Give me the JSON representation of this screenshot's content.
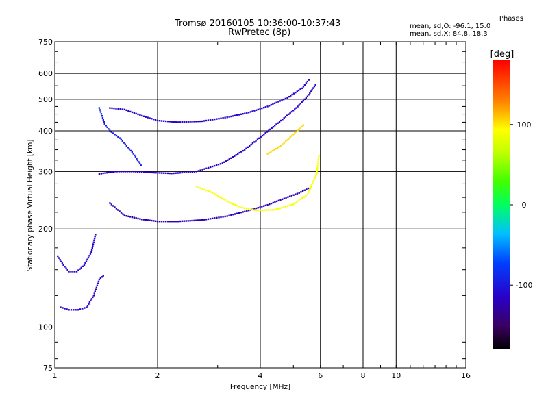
{
  "chart_data": {
    "type": "scatter",
    "title": "Tromsø 20160105 10:36:00-10:37:43",
    "subtitle": "RwPretec (8p)",
    "xlabel": "Frequency [MHz]",
    "ylabel": "Stationary phase Virtual Height [km]",
    "x_scale": "log",
    "y_scale": "log",
    "xlim": [
      1,
      16
    ],
    "ylim": [
      75,
      750
    ],
    "x_ticks": [
      1,
      2,
      4,
      6,
      8,
      10,
      16
    ],
    "y_ticks": [
      75,
      100,
      200,
      300,
      400,
      500,
      600,
      750
    ],
    "grid": true,
    "colorbar": {
      "label": "[deg]",
      "range": [
        -180,
        180
      ],
      "ticks": [
        100,
        0,
        -100
      ]
    },
    "phase_stats": {
      "heading": "Phases",
      "line_o": "mean, sd,O: -96.1, 15.0",
      "line_x": "mean, sd,X:  84.8, 18.3"
    },
    "traces": [
      {
        "phase": -110,
        "points": [
          [
            1.45,
            470
          ],
          [
            1.6,
            465
          ],
          [
            1.8,
            445
          ],
          [
            2.0,
            430
          ],
          [
            2.3,
            425
          ],
          [
            2.7,
            428
          ],
          [
            3.2,
            440
          ],
          [
            3.7,
            455
          ],
          [
            4.2,
            475
          ],
          [
            4.8,
            505
          ],
          [
            5.3,
            540
          ],
          [
            5.6,
            580
          ]
        ]
      },
      {
        "phase": -115,
        "points": [
          [
            1.35,
            295
          ],
          [
            1.5,
            300
          ],
          [
            1.7,
            300
          ],
          [
            1.9,
            298
          ],
          [
            2.2,
            296
          ],
          [
            2.6,
            300
          ],
          [
            3.1,
            318
          ],
          [
            3.6,
            350
          ],
          [
            4.1,
            390
          ],
          [
            4.6,
            430
          ],
          [
            5.1,
            470
          ],
          [
            5.5,
            510
          ],
          [
            5.85,
            560
          ]
        ]
      },
      {
        "phase": -120,
        "points": [
          [
            1.45,
            240
          ],
          [
            1.6,
            220
          ],
          [
            1.8,
            214
          ],
          [
            2.0,
            211
          ],
          [
            2.3,
            211
          ],
          [
            2.7,
            213
          ],
          [
            3.2,
            219
          ],
          [
            3.7,
            228
          ],
          [
            4.2,
            237
          ],
          [
            4.7,
            248
          ],
          [
            5.2,
            258
          ],
          [
            5.6,
            268
          ]
        ]
      },
      {
        "phase": 90,
        "points": [
          [
            2.6,
            270
          ],
          [
            2.9,
            258
          ],
          [
            3.2,
            243
          ],
          [
            3.5,
            233
          ],
          [
            3.9,
            228
          ],
          [
            4.4,
            229
          ],
          [
            5.0,
            238
          ],
          [
            5.5,
            255
          ],
          [
            5.85,
            295
          ],
          [
            5.95,
            340
          ]
        ]
      },
      {
        "phase": -95,
        "points": [
          [
            1.35,
            470
          ],
          [
            1.4,
            420
          ],
          [
            1.45,
            400
          ],
          [
            1.55,
            380
          ],
          [
            1.7,
            340
          ],
          [
            1.8,
            310
          ]
        ]
      },
      {
        "phase": -110,
        "points": [
          [
            1.02,
            165
          ],
          [
            1.06,
            155
          ],
          [
            1.1,
            148
          ],
          [
            1.16,
            148
          ],
          [
            1.22,
            155
          ],
          [
            1.28,
            170
          ],
          [
            1.32,
            195
          ]
        ]
      },
      {
        "phase": -115,
        "points": [
          [
            1.04,
            115
          ],
          [
            1.1,
            113
          ],
          [
            1.17,
            113
          ],
          [
            1.24,
            115
          ],
          [
            1.3,
            125
          ],
          [
            1.35,
            140
          ],
          [
            1.4,
            145
          ]
        ]
      },
      {
        "phase": 105,
        "points": [
          [
            4.2,
            340
          ],
          [
            4.6,
            360
          ],
          [
            5.0,
            390
          ],
          [
            5.4,
            420
          ]
        ]
      }
    ]
  }
}
